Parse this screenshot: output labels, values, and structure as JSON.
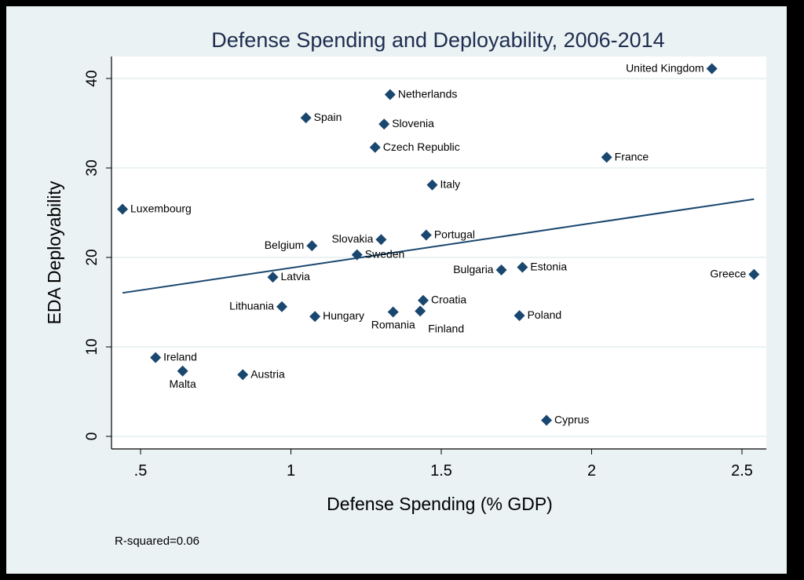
{
  "chart_data": {
    "type": "scatter",
    "title": "Defense Spending and Deployability, 2006-2014",
    "xlabel": "Defense Spending (% GDP)",
    "ylabel": "EDA Deployability",
    "xlim": [
      0.4,
      2.6
    ],
    "ylim": [
      -1.5,
      42.5
    ],
    "xticks": [
      0.5,
      1,
      1.5,
      2,
      2.5
    ],
    "xtick_labels": [
      ".5",
      "1",
      "1.5",
      "2",
      "2.5"
    ],
    "yticks": [
      0,
      10,
      20,
      30,
      40
    ],
    "ytick_labels": [
      "0",
      "10",
      "20",
      "30",
      "40"
    ],
    "grid": "horizontal",
    "marker": "diamond",
    "marker_color": "#1A476F",
    "title_color": "#1E2D4F",
    "background_color": "#EAF2F3",
    "points": [
      {
        "label": "Luxembourg",
        "x": 0.44,
        "y": 25.4
      },
      {
        "label": "Ireland",
        "x": 0.55,
        "y": 8.8
      },
      {
        "label": "Malta",
        "x": 0.64,
        "y": 7.3
      },
      {
        "label": "Austria",
        "x": 0.84,
        "y": 6.9
      },
      {
        "label": "Latvia",
        "x": 0.94,
        "y": 17.8
      },
      {
        "label": "Lithuania",
        "x": 0.97,
        "y": 14.5
      },
      {
        "label": "Spain",
        "x": 1.05,
        "y": 35.6
      },
      {
        "label": "Belgium",
        "x": 1.07,
        "y": 21.3
      },
      {
        "label": "Hungary",
        "x": 1.08,
        "y": 13.4
      },
      {
        "label": "Sweden",
        "x": 1.22,
        "y": 20.3
      },
      {
        "label": "Czech Republic",
        "x": 1.28,
        "y": 32.3
      },
      {
        "label": "Slovakia",
        "x": 1.3,
        "y": 22.0
      },
      {
        "label": "Slovenia",
        "x": 1.31,
        "y": 34.9
      },
      {
        "label": "Netherlands",
        "x": 1.33,
        "y": 38.2
      },
      {
        "label": "Romania",
        "x": 1.34,
        "y": 13.9
      },
      {
        "label": "Finland",
        "x": 1.43,
        "y": 14.0
      },
      {
        "label": "Croatia",
        "x": 1.44,
        "y": 15.2
      },
      {
        "label": "Portugal",
        "x": 1.45,
        "y": 22.5
      },
      {
        "label": "Italy",
        "x": 1.47,
        "y": 28.1
      },
      {
        "label": "Bulgaria",
        "x": 1.7,
        "y": 18.6
      },
      {
        "label": "Poland",
        "x": 1.76,
        "y": 13.5
      },
      {
        "label": "Estonia",
        "x": 1.77,
        "y": 18.9
      },
      {
        "label": "Cyprus",
        "x": 1.85,
        "y": 1.8
      },
      {
        "label": "France",
        "x": 2.05,
        "y": 31.2
      },
      {
        "label": "United Kingdom",
        "x": 2.4,
        "y": 41.1
      },
      {
        "label": "Greece",
        "x": 2.54,
        "y": 18.1
      }
    ],
    "fit_line": {
      "type": "linear",
      "intercept": 13.84,
      "slope": 4.99,
      "x_range": [
        0.44,
        2.54
      ]
    },
    "annotation": "R-squared=0.06"
  }
}
